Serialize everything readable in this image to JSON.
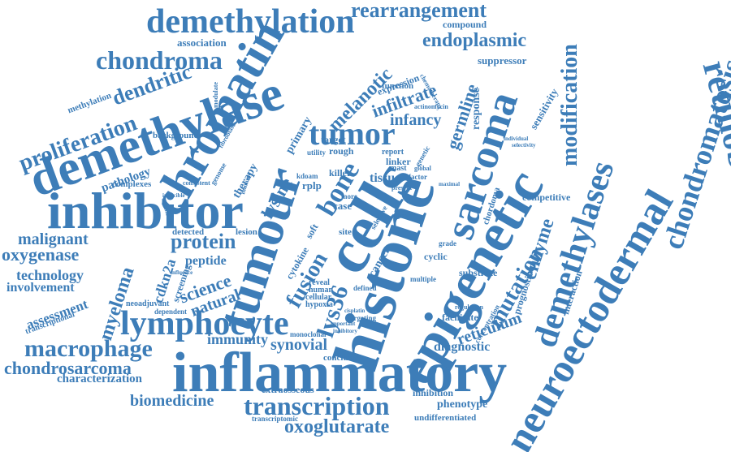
{
  "cloud": {
    "color": "#3d7db8",
    "words": {
      "inflammatory": "inflammatory",
      "inhibitor": "inhibitor",
      "chromatin": "chromatin",
      "demethylase": "demethylase",
      "tumour": "tumour",
      "histone": "histone",
      "cells": "cells",
      "epigenetic": "epigenetic",
      "neuroectodermal": "neuroectodermal",
      "retinoblastoma": "retinoblastoma",
      "chondromatosis": "chondromatosis",
      "demethylases": "demethylases",
      "sarcoma": "sarcoma",
      "demethylation": "demethylation",
      "rearrangement": "rearrangement",
      "chondroma": "chondroma",
      "dendritic": "dendritic",
      "proliferation": "proliferation",
      "tumor": "tumor",
      "melanotic": "melanotic",
      "endoplasmic": "endoplasmic",
      "lymphocyte": "lymphocyte",
      "macrophage": "macrophage",
      "chondrosarcoma": "chondrosarcoma",
      "transcription": "transcription",
      "oxoglutarate": "oxoglutarate",
      "biomedicine": "biomedicine",
      "characterization": "characterization",
      "protein": "protein",
      "malignant": "malignant",
      "oxygenase": "oxygenase",
      "technology": "technology",
      "involvement": "involvement",
      "assessment": "assessment",
      "myeloma": "myeloma",
      "science": "science",
      "natural": "natural",
      "bone": "bone",
      "fusion": "fusion",
      "modification": "modification",
      "mutation": "mutation",
      "enzyme": "enzyme",
      "reticulum": "reticulum",
      "diagnostic": "diagnostic",
      "synovial": "synovial",
      "immunity": "immunity",
      "germline": "germline",
      "infiltrate": "infiltrate",
      "infancy": "infancy",
      "lysine": "lysine",
      "cdkn2a": "cdkn2a",
      "peptide": "peptide",
      "lys36": "lys36",
      "pathology": "pathology",
      "association": "association",
      "compound": "compound",
      "suppressor": "suppressor",
      "sensitivity": "sensitivity",
      "response": "response",
      "expression": "expression",
      "function": "function",
      "primary": "primary",
      "target": "target",
      "rough": "rough",
      "killer": "killer",
      "tissue": "tissue",
      "linker": "linker",
      "cytokine": "cytokine",
      "phenotype": "phenotype",
      "inhibition": "inhibition",
      "extraosseous": "extraosseous",
      "undifferentiated": "undifferentiated",
      "conclusion": "conclusion",
      "competitive": "competitive",
      "prognostic": "prognostic",
      "interaction": "interaction",
      "substrate": "substrate",
      "cyclic": "cyclic",
      "cancer": "cancer",
      "methylation": "methylation",
      "background": "background",
      "complexes": "complexes",
      "therapy": "therapy",
      "screening": "screening",
      "detected": "detected",
      "lesion": "lesion",
      "neoadjuvant": "neoadjuvant",
      "dependent": "dependent",
      "transcriptional": "transcriptional",
      "monoclonal": "monoclonal",
      "hypoxia": "hypoxia",
      "cellular": "cellular",
      "human": "human",
      "reveal": "reveal",
      "defined": "defined",
      "multiple": "multiple",
      "grade": "grade",
      "facilitate": "facilitate",
      "concentration": "concentration",
      "regulation": "regulation",
      "report": "report",
      "utility": "utility",
      "global": "global",
      "factor": "factor",
      "genetic": "genetic",
      "selective": "selective",
      "site": "site",
      "soft": "soft",
      "case": "case",
      "more": "more",
      "rplp": "rplp",
      "kdoam": "kdoam",
      "genome": "genome",
      "fibroblast": "fibroblast",
      "consistent": "consistent",
      "inducible": "inducible",
      "influence": "influence",
      "transcriptomic": "transcriptomic",
      "targeting": "targeting",
      "important": "important",
      "inhibitory": "inhibitory",
      "cisplatin": "cisplatin",
      "chordoma": "chordoma",
      "actinomycin": "actinomycin",
      "chemotherapy": "chemotherapy",
      "mast": "mast",
      "individual": "individual",
      "selectivity": "selectivity",
      "present": "present",
      "maximal": "maximal",
      "growth": "growth",
      "modulate": "modulate",
      "significant": "significant",
      "immune": "immune"
    }
  }
}
